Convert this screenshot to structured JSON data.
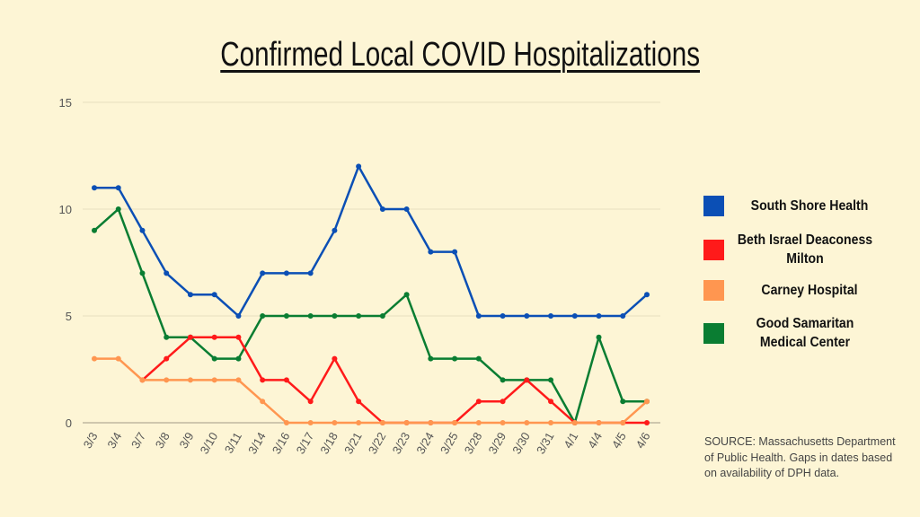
{
  "chart_data": {
    "type": "line",
    "title": "Confirmed Local COVID Hospitalizations",
    "xlabel": "",
    "ylabel": "",
    "ylim": [
      0,
      15
    ],
    "yticks": [
      0,
      5,
      10,
      15
    ],
    "grid": true,
    "legend_position": "right",
    "categories": [
      "3/3",
      "3/4",
      "3/7",
      "3/8",
      "3/9",
      "3/10",
      "3/11",
      "3/14",
      "3/16",
      "3/17",
      "3/18",
      "3/21",
      "3/22",
      "3/23",
      "3/24",
      "3/25",
      "3/28",
      "3/29",
      "3/30",
      "3/31",
      "4/1",
      "4/4",
      "4/5",
      "4/6"
    ],
    "series": [
      {
        "name": "South Shore Health",
        "color": "#0b4fb5",
        "values": [
          11,
          11,
          9,
          7,
          6,
          6,
          5,
          7,
          7,
          7,
          9,
          12,
          10,
          10,
          8,
          8,
          5,
          5,
          5,
          5,
          5,
          5,
          5,
          6
        ]
      },
      {
        "name": "Beth Israel Deaconess Milton",
        "color": "#ff1a1a",
        "values": [
          null,
          null,
          2,
          3,
          4,
          4,
          4,
          2,
          2,
          1,
          3,
          1,
          0,
          0,
          0,
          0,
          1,
          1,
          2,
          1,
          0,
          0,
          0,
          0
        ]
      },
      {
        "name": "Carney Hospital",
        "color": "#ff9650",
        "values": [
          3,
          3,
          2,
          2,
          2,
          2,
          2,
          1,
          0,
          0,
          0,
          0,
          0,
          0,
          0,
          0,
          0,
          0,
          0,
          0,
          0,
          0,
          0,
          1
        ]
      },
      {
        "name": "Good Samaritan Medical Center",
        "color": "#0a7d32",
        "values": [
          9,
          10,
          7,
          4,
          4,
          3,
          3,
          5,
          5,
          5,
          5,
          5,
          5,
          6,
          3,
          3,
          3,
          2,
          2,
          2,
          0,
          4,
          1,
          1
        ]
      }
    ]
  },
  "legend": [
    {
      "label": "South Shore Health"
    },
    {
      "label": "Beth Israel Deaconess Milton"
    },
    {
      "label": "Carney Hospital"
    },
    {
      "label": "Good Samaritan Medical Center"
    }
  ],
  "source_note": "SOURCE: Massachusetts Department of Public Health. Gaps in dates based on availability of DPH data."
}
